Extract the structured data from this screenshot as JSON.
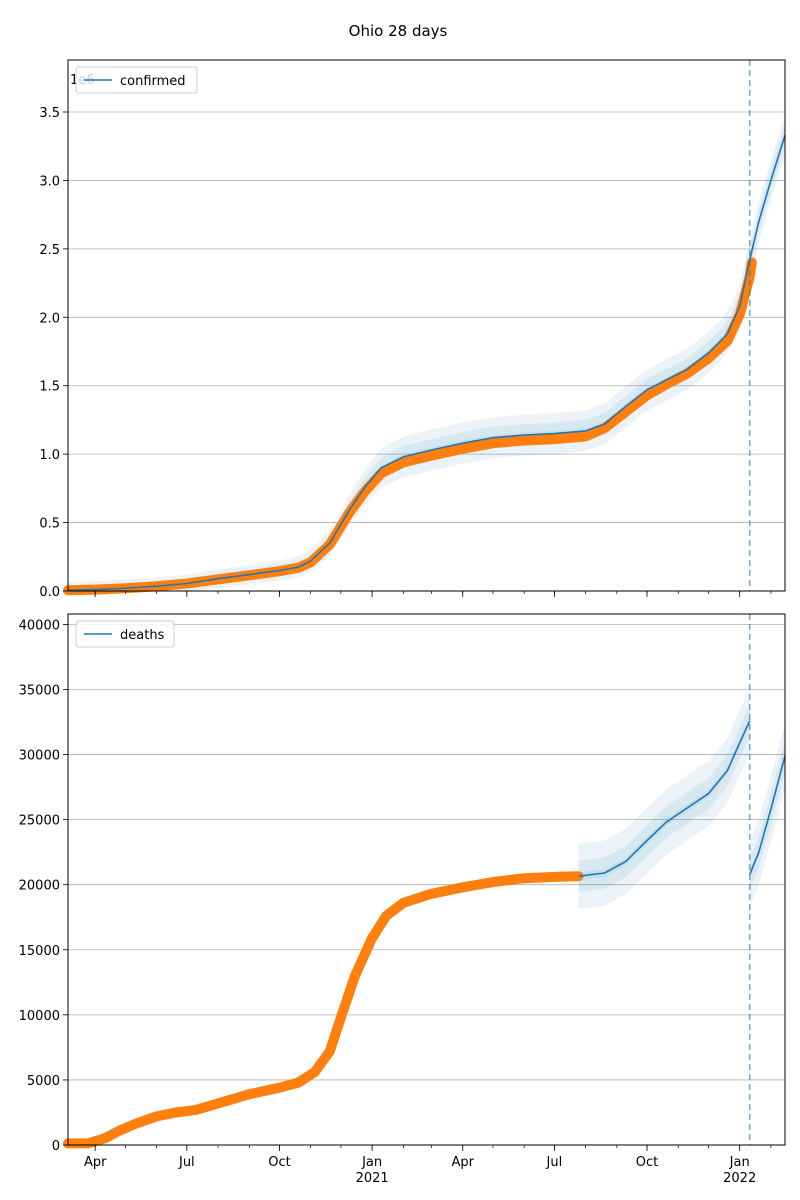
{
  "figure": {
    "title": "Ohio 28 days"
  },
  "chart_data": [
    {
      "type": "line",
      "legend": "confirmed",
      "legend_position": "top-left",
      "multiplier_label": "1e6",
      "ylim": [
        0,
        3.88
      ],
      "yticks": [
        0,
        0.5,
        1.0,
        1.5,
        2.0,
        2.5,
        3.0,
        3.5
      ],
      "yticklabels": [
        "0.0",
        "0.5",
        "1.0",
        "1.5",
        "2.0",
        "2.5",
        "3.0",
        "3.5"
      ],
      "grid": true,
      "model_line": {
        "x": [
          "2020-03-05",
          "2020-04-01",
          "2020-05-01",
          "2020-06-01",
          "2020-07-01",
          "2020-08-01",
          "2020-09-01",
          "2020-10-01",
          "2020-10-20",
          "2020-11-01",
          "2020-11-20",
          "2020-12-10",
          "2020-12-25",
          "2021-01-10",
          "2021-02-01",
          "2021-03-01",
          "2021-04-01",
          "2021-05-01",
          "2021-06-01",
          "2021-07-01",
          "2021-08-01",
          "2021-08-20",
          "2021-09-10",
          "2021-10-01",
          "2021-10-20",
          "2021-11-10",
          "2021-12-01",
          "2021-12-20",
          "2022-01-01",
          "2022-01-11",
          "2022-01-20",
          "2022-02-01",
          "2022-02-15"
        ],
        "y": [
          0.005,
          0.01,
          0.02,
          0.035,
          0.055,
          0.09,
          0.12,
          0.15,
          0.175,
          0.22,
          0.35,
          0.6,
          0.76,
          0.9,
          0.98,
          1.03,
          1.08,
          1.12,
          1.14,
          1.15,
          1.17,
          1.22,
          1.35,
          1.47,
          1.54,
          1.62,
          1.74,
          1.88,
          2.08,
          2.42,
          2.7,
          3.0,
          3.33
        ]
      },
      "band_width": [
        0.02,
        0.08,
        0.15
      ],
      "observed": {
        "x": [
          "2020-03-05",
          "2020-04-01",
          "2020-05-01",
          "2020-06-01",
          "2020-07-01",
          "2020-08-01",
          "2020-09-01",
          "2020-10-01",
          "2020-10-20",
          "2020-11-01",
          "2020-11-20",
          "2020-12-10",
          "2020-12-25",
          "2021-01-10",
          "2021-02-01",
          "2021-03-01",
          "2021-04-01",
          "2021-05-01",
          "2021-06-01",
          "2021-07-01",
          "2021-08-01",
          "2021-08-20",
          "2021-09-10",
          "2021-10-01",
          "2021-10-20",
          "2021-11-10",
          "2021-12-01",
          "2021-12-20",
          "2022-01-01",
          "2022-01-11",
          "2022-01-13"
        ],
        "y": [
          0.005,
          0.01,
          0.02,
          0.035,
          0.055,
          0.085,
          0.115,
          0.145,
          0.17,
          0.21,
          0.34,
          0.58,
          0.73,
          0.86,
          0.94,
          0.99,
          1.04,
          1.08,
          1.1,
          1.11,
          1.13,
          1.19,
          1.31,
          1.43,
          1.51,
          1.59,
          1.7,
          1.83,
          2.02,
          2.3,
          2.4
        ]
      },
      "forecast_date": "2022-01-11"
    },
    {
      "type": "line",
      "legend": "deaths",
      "legend_position": "top-left",
      "ylim": [
        0,
        40800
      ],
      "yticks": [
        0,
        5000,
        10000,
        15000,
        20000,
        25000,
        30000,
        35000,
        40000
      ],
      "yticklabels": [
        "0",
        "5000",
        "10000",
        "15000",
        "20000",
        "25000",
        "30000",
        "35000",
        "40000"
      ],
      "grid": true,
      "model_line": {
        "x": [
          "2021-07-25",
          "2021-08-20",
          "2021-09-10",
          "2021-10-01",
          "2021-10-20",
          "2021-11-10",
          "2021-12-01",
          "2021-12-20",
          "2022-01-01",
          "2022-01-11"
        ],
        "y": [
          20650,
          20900,
          21800,
          23400,
          24800,
          25900,
          27000,
          28800,
          30900,
          32600
        ]
      },
      "forecast_line": {
        "x": [
          "2022-01-11",
          "2022-01-20",
          "2022-02-01",
          "2022-02-15"
        ],
        "y": [
          20800,
          22500,
          25800,
          29900
        ]
      },
      "band_width": [
        300,
        1200,
        2500
      ],
      "observed": {
        "x": [
          "2020-03-05",
          "2020-03-25",
          "2020-04-10",
          "2020-04-25",
          "2020-05-10",
          "2020-06-01",
          "2020-06-20",
          "2020-07-10",
          "2020-08-01",
          "2020-09-01",
          "2020-10-01",
          "2020-10-20",
          "2020-11-05",
          "2020-11-20",
          "2020-12-01",
          "2020-12-15",
          "2021-01-01",
          "2021-01-15",
          "2021-02-01",
          "2021-03-01",
          "2021-04-01",
          "2021-05-01",
          "2021-06-01",
          "2021-07-01",
          "2021-07-25"
        ],
        "y": [
          120,
          130,
          500,
          1100,
          1600,
          2200,
          2500,
          2700,
          3200,
          3900,
          4400,
          4800,
          5600,
          7200,
          9800,
          13000,
          15900,
          17600,
          18600,
          19300,
          19800,
          20200,
          20500,
          20600,
          20650
        ]
      },
      "forecast_date": "2022-01-11"
    }
  ],
  "x_axis": {
    "xlim": [
      "2020-03-05",
      "2022-02-15"
    ],
    "major_ticks": [
      {
        "date": "2020-04-01",
        "label": "Apr",
        "sub": ""
      },
      {
        "date": "2020-07-01",
        "label": "Jul",
        "sub": ""
      },
      {
        "date": "2020-10-01",
        "label": "Oct",
        "sub": ""
      },
      {
        "date": "2021-01-01",
        "label": "Jan",
        "sub": "2021"
      },
      {
        "date": "2021-04-01",
        "label": "Apr",
        "sub": ""
      },
      {
        "date": "2021-07-01",
        "label": "Jul",
        "sub": ""
      },
      {
        "date": "2021-10-01",
        "label": "Oct",
        "sub": ""
      },
      {
        "date": "2022-01-01",
        "label": "Jan",
        "sub": "2022"
      }
    ]
  },
  "colors": {
    "model": "#1f77b4",
    "observed": "#ff7f0e",
    "band": "#1f77b4",
    "grid": "#b0b0b0",
    "forecast_line": "#1f77b4"
  }
}
